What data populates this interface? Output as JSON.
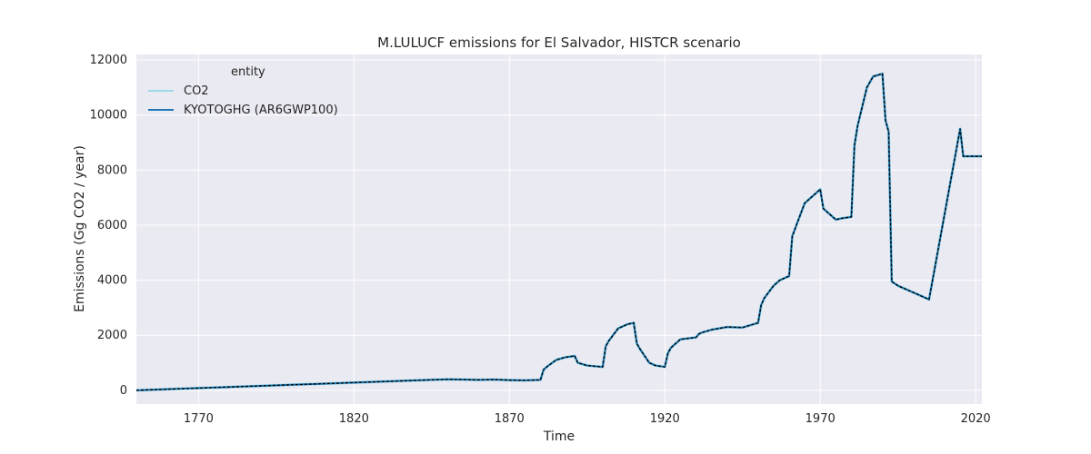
{
  "chart_data": {
    "type": "line",
    "title": "M.LULUCF emissions for El Salvador, HISTCR scenario",
    "xlabel": "Time",
    "ylabel": "Emissions (Gg CO2 / year)",
    "xlim": [
      1750,
      2022
    ],
    "ylim": [
      -500,
      12200
    ],
    "xticks": [
      1770,
      1820,
      1870,
      1920,
      1970,
      2020
    ],
    "yticks": [
      0,
      2000,
      4000,
      6000,
      8000,
      10000,
      12000
    ],
    "grid": true,
    "legend": {
      "title": "entity",
      "placement": "top-left"
    },
    "x": [
      1750,
      1760,
      1770,
      1780,
      1790,
      1800,
      1810,
      1820,
      1830,
      1840,
      1850,
      1855,
      1860,
      1865,
      1870,
      1875,
      1880,
      1881,
      1882,
      1885,
      1888,
      1891,
      1892,
      1895,
      1900,
      1901,
      1902,
      1905,
      1908,
      1910,
      1911,
      1912,
      1915,
      1917,
      1920,
      1921,
      1922,
      1925,
      1927,
      1930,
      1931,
      1932,
      1935,
      1940,
      1945,
      1950,
      1951,
      1952,
      1955,
      1957,
      1960,
      1961,
      1962,
      1965,
      1968,
      1970,
      1971,
      1972,
      1975,
      1977,
      1980,
      1981,
      1982,
      1985,
      1987,
      1990,
      1991,
      1992,
      1993,
      1995,
      2000,
      2005,
      2010,
      2015,
      2016,
      2020,
      2022
    ],
    "series": [
      {
        "name": "CO2",
        "color": "#9edae5",
        "values": [
          0,
          40,
          80,
          120,
          160,
          200,
          240,
          280,
          320,
          360,
          400,
          390,
          380,
          390,
          370,
          360,
          380,
          750,
          850,
          1100,
          1200,
          1250,
          1000,
          900,
          850,
          1600,
          1800,
          2250,
          2400,
          2450,
          1700,
          1500,
          1000,
          900,
          850,
          1350,
          1550,
          1850,
          1880,
          1920,
          2050,
          2100,
          2200,
          2300,
          2280,
          2450,
          3100,
          3350,
          3800,
          4000,
          4150,
          5600,
          5900,
          6800,
          7100,
          7300,
          6600,
          6500,
          6200,
          6250,
          6300,
          8900,
          9600,
          11000,
          11400,
          11500,
          9800,
          9400,
          3950,
          3800,
          3550,
          3300,
          6400,
          9500,
          8500,
          8500,
          8500
        ]
      },
      {
        "name": "KYOTOGHG (AR6GWP100)",
        "color": "#1f77b4",
        "values": [
          0,
          40,
          80,
          120,
          160,
          200,
          240,
          280,
          320,
          360,
          400,
          390,
          380,
          390,
          370,
          360,
          380,
          750,
          850,
          1100,
          1200,
          1250,
          1000,
          900,
          850,
          1600,
          1800,
          2250,
          2400,
          2450,
          1700,
          1500,
          1000,
          900,
          850,
          1350,
          1550,
          1850,
          1880,
          1920,
          2050,
          2100,
          2200,
          2300,
          2280,
          2450,
          3100,
          3350,
          3800,
          4000,
          4150,
          5600,
          5900,
          6800,
          7100,
          7300,
          6600,
          6500,
          6200,
          6250,
          6300,
          8900,
          9600,
          11000,
          11400,
          11500,
          9800,
          9400,
          3950,
          3800,
          3550,
          3300,
          6400,
          9500,
          8500,
          8500,
          8500
        ]
      }
    ]
  },
  "colors": {
    "plot_background": "#eaeaf2",
    "grid": "#ffffff",
    "overlay_dash": "#000000"
  }
}
